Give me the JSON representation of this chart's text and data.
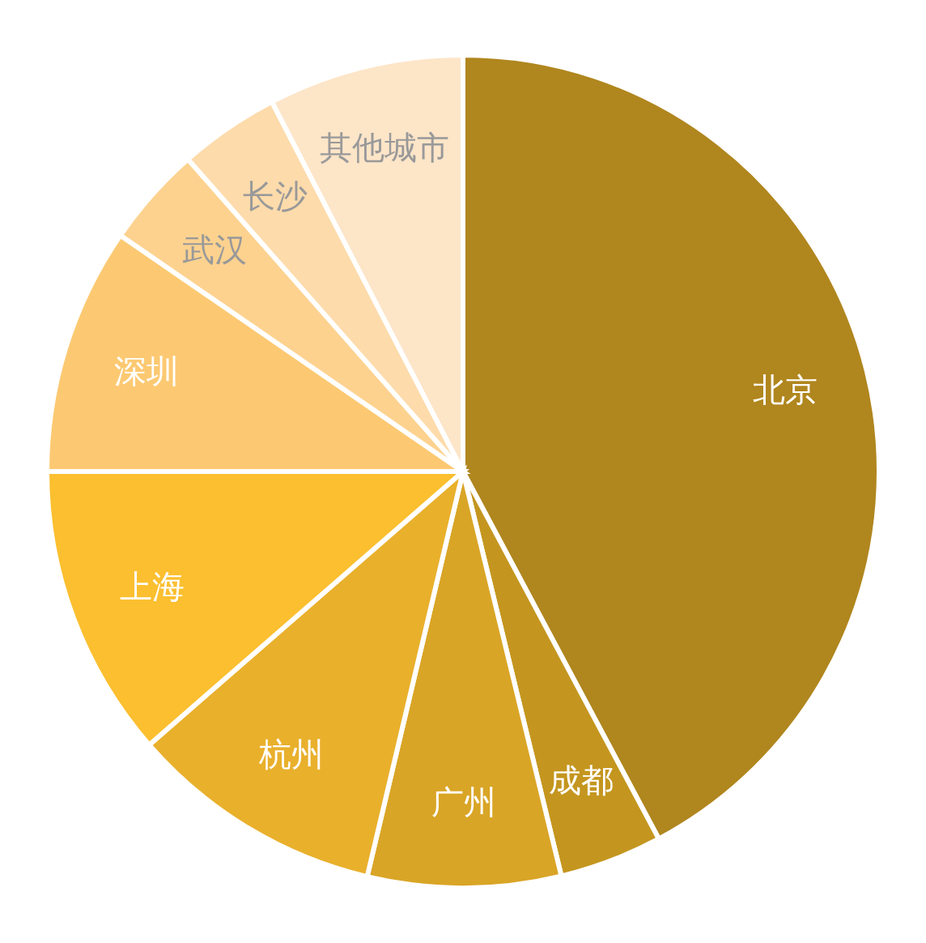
{
  "chart_data": {
    "type": "pie",
    "categories": [
      "北京",
      "成都",
      "广州",
      "杭州",
      "上海",
      "深圳",
      "武汉",
      "长沙",
      "其他城市"
    ],
    "values": [
      42.2,
      4.0,
      7.5,
      9.9,
      11.4,
      9.6,
      3.9,
      3.9,
      7.6
    ],
    "colors": [
      "#b0861e",
      "#c4961f",
      "#d9a526",
      "#e9b02c",
      "#fbbf2f",
      "#fcc972",
      "#fdd28f",
      "#fddbab",
      "#fde5c8"
    ]
  }
}
